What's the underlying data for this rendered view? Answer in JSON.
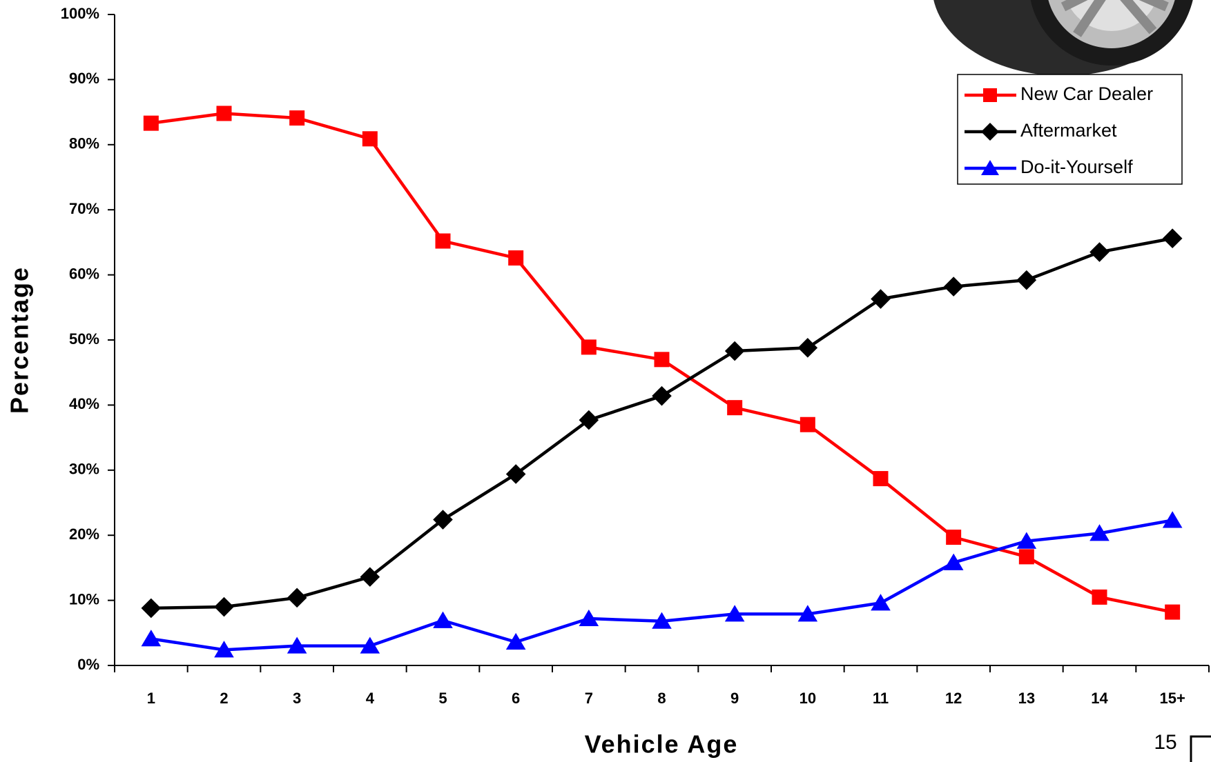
{
  "chart_data": {
    "type": "line",
    "x_label": "Vehicle Age",
    "y_label": "Percentage",
    "categories": [
      "1",
      "2",
      "3",
      "4",
      "5",
      "6",
      "7",
      "8",
      "9",
      "10",
      "11",
      "12",
      "13",
      "14",
      "15+"
    ],
    "ylim": [
      0,
      100
    ],
    "yticks": [
      {
        "value": 0,
        "label": "0%"
      },
      {
        "value": 10,
        "label": "10%"
      },
      {
        "value": 20,
        "label": "20%"
      },
      {
        "value": 30,
        "label": "30%"
      },
      {
        "value": 40,
        "label": "40%"
      },
      {
        "value": 50,
        "label": "50%"
      },
      {
        "value": 60,
        "label": "60%"
      },
      {
        "value": 70,
        "label": "70%"
      },
      {
        "value": 80,
        "label": "80%"
      },
      {
        "value": 90,
        "label": "90%"
      },
      {
        "value": 100,
        "label": "100%"
      }
    ],
    "legend": "top-right",
    "series": [
      {
        "name": "New Car Dealer",
        "color": "#ff0000",
        "marker": "square",
        "values": [
          83.3,
          84.8,
          84.1,
          80.9,
          65.2,
          62.6,
          48.9,
          47.0,
          39.6,
          37.0,
          28.7,
          19.7,
          16.7,
          10.5,
          8.2
        ]
      },
      {
        "name": "Aftermarket",
        "color": "#000000",
        "marker": "diamond",
        "values": [
          8.8,
          9.0,
          10.4,
          13.6,
          22.4,
          29.4,
          37.7,
          41.4,
          48.3,
          48.8,
          56.3,
          58.2,
          59.2,
          63.5,
          65.6
        ]
      },
      {
        "name": "Do-it-Yourself",
        "color": "#0000ff",
        "marker": "triangle",
        "values": [
          4.1,
          2.4,
          3.0,
          3.0,
          6.9,
          3.6,
          7.2,
          6.8,
          7.9,
          7.9,
          9.6,
          15.8,
          19.1,
          20.3,
          22.3
        ]
      }
    ]
  },
  "page_number": "15"
}
